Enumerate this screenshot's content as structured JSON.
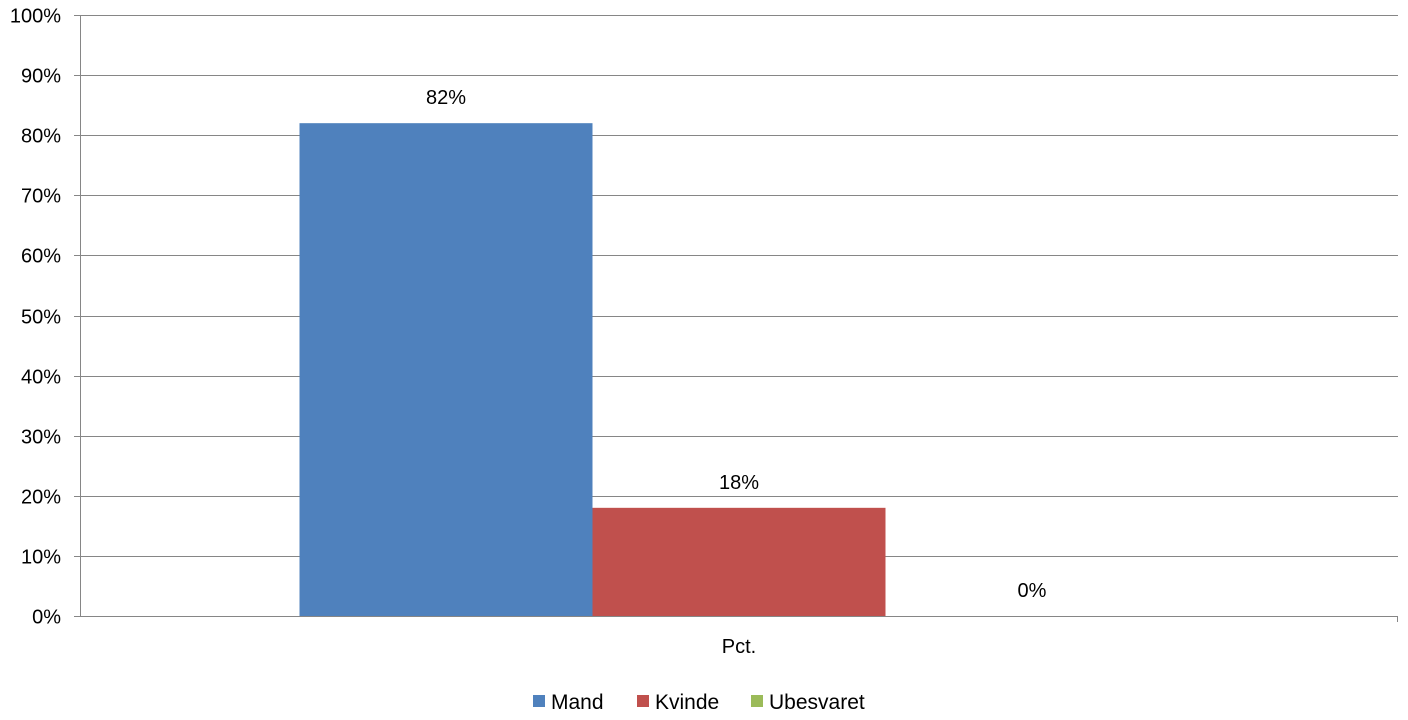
{
  "chart_data": {
    "type": "bar",
    "categories": [
      "Pct."
    ],
    "series": [
      {
        "name": "Mand",
        "values": [
          82
        ],
        "label": "82%",
        "color": "#4F81BD"
      },
      {
        "name": "Kvinde",
        "values": [
          18
        ],
        "label": "18%",
        "color": "#C0504D"
      },
      {
        "name": "Ubesvaret",
        "values": [
          0
        ],
        "label": "0%",
        "color": "#9BBB59"
      }
    ],
    "y_ticks": [
      "0%",
      "10%",
      "20%",
      "30%",
      "40%",
      "50%",
      "60%",
      "70%",
      "80%",
      "90%",
      "100%"
    ],
    "ylim": [
      0,
      100
    ],
    "grid": true,
    "legend_position": "bottom",
    "colors": {
      "grid": "#868686",
      "axis": "#868686"
    }
  }
}
